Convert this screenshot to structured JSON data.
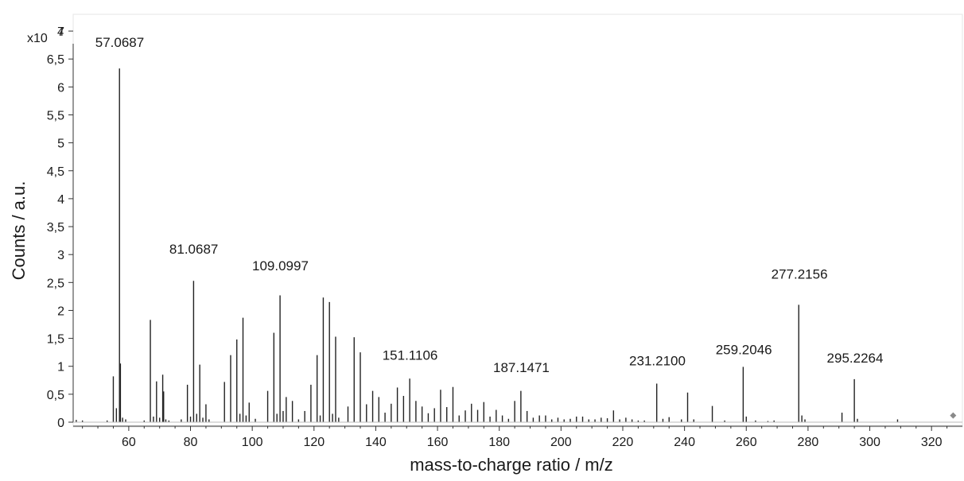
{
  "chart_data": {
    "type": "bar",
    "title": "",
    "xlabel": "mass-to-charge ratio / m/z",
    "ylabel": "Counts / a.u.",
    "y_multiplier_label": "x10",
    "y_multiplier_exponent": "4",
    "xlim": [
      42,
      330
    ],
    "ylim": [
      0,
      7.3
    ],
    "grid": false,
    "legend": "none",
    "colors": {
      "stick": "#222222",
      "axis": "#333333",
      "marker": "#8a8a8a"
    },
    "x_ticks": [
      60,
      80,
      100,
      120,
      140,
      160,
      180,
      200,
      220,
      240,
      260,
      280,
      300,
      320
    ],
    "x_tick_labels": [
      "60",
      "80",
      "100",
      "120",
      "140",
      "160",
      "180",
      "200",
      "220",
      "240",
      "260",
      "280",
      "300",
      "320"
    ],
    "y_ticks": [
      0,
      0.5,
      1,
      1.5,
      2,
      2.5,
      3,
      3.5,
      4,
      4.5,
      5,
      5.5,
      6,
      6.5,
      7
    ],
    "y_tick_labels": [
      "0",
      "0,5",
      "1",
      "1,5",
      "2",
      "2,5",
      "3",
      "3,5",
      "4",
      "4,5",
      "5",
      "5,5",
      "6",
      "6,5",
      "7"
    ],
    "series": [
      {
        "peaks": [
          [
            43,
            0.04
          ],
          [
            45,
            0.03
          ],
          [
            53,
            0.03
          ],
          [
            55,
            0.82
          ],
          [
            56,
            0.25
          ],
          [
            57,
            6.33
          ],
          [
            57.3,
            1.05
          ],
          [
            58,
            0.08
          ],
          [
            59,
            0.05
          ],
          [
            65,
            0.03
          ],
          [
            67,
            1.83
          ],
          [
            68,
            0.1
          ],
          [
            69,
            0.73
          ],
          [
            70,
            0.08
          ],
          [
            71,
            0.85
          ],
          [
            71.3,
            0.55
          ],
          [
            72,
            0.05
          ],
          [
            73,
            0.03
          ],
          [
            77,
            0.05
          ],
          [
            79,
            0.67
          ],
          [
            80,
            0.1
          ],
          [
            81,
            2.53
          ],
          [
            82,
            0.15
          ],
          [
            83,
            1.03
          ],
          [
            84,
            0.08
          ],
          [
            85,
            0.32
          ],
          [
            86,
            0.05
          ],
          [
            91,
            0.72
          ],
          [
            93,
            1.2
          ],
          [
            95,
            1.48
          ],
          [
            96,
            0.15
          ],
          [
            97,
            1.87
          ],
          [
            98,
            0.12
          ],
          [
            99,
            0.35
          ],
          [
            101,
            0.06
          ],
          [
            105,
            0.56
          ],
          [
            107,
            1.6
          ],
          [
            108,
            0.15
          ],
          [
            109,
            2.27
          ],
          [
            110,
            0.2
          ],
          [
            111,
            0.45
          ],
          [
            113,
            0.38
          ],
          [
            115,
            0.05
          ],
          [
            117,
            0.2
          ],
          [
            119,
            0.67
          ],
          [
            121,
            1.2
          ],
          [
            122,
            0.12
          ],
          [
            123,
            2.23
          ],
          [
            125,
            2.15
          ],
          [
            126,
            0.15
          ],
          [
            127,
            1.53
          ],
          [
            128,
            0.08
          ],
          [
            131,
            0.28
          ],
          [
            133,
            1.52
          ],
          [
            135,
            1.25
          ],
          [
            137,
            0.32
          ],
          [
            139,
            0.56
          ],
          [
            141,
            0.45
          ],
          [
            143,
            0.17
          ],
          [
            145,
            0.33
          ],
          [
            147,
            0.62
          ],
          [
            149,
            0.47
          ],
          [
            151,
            0.78
          ],
          [
            153,
            0.38
          ],
          [
            155,
            0.28
          ],
          [
            157,
            0.16
          ],
          [
            159,
            0.25
          ],
          [
            161,
            0.58
          ],
          [
            163,
            0.27
          ],
          [
            165,
            0.63
          ],
          [
            167,
            0.12
          ],
          [
            169,
            0.21
          ],
          [
            171,
            0.33
          ],
          [
            173,
            0.22
          ],
          [
            175,
            0.36
          ],
          [
            177,
            0.1
          ],
          [
            179,
            0.22
          ],
          [
            181,
            0.12
          ],
          [
            183,
            0.06
          ],
          [
            185,
            0.38
          ],
          [
            187,
            0.56
          ],
          [
            189,
            0.2
          ],
          [
            191,
            0.08
          ],
          [
            193,
            0.12
          ],
          [
            195,
            0.12
          ],
          [
            197,
            0.05
          ],
          [
            199,
            0.08
          ],
          [
            201,
            0.05
          ],
          [
            203,
            0.06
          ],
          [
            205,
            0.1
          ],
          [
            207,
            0.1
          ],
          [
            209,
            0.05
          ],
          [
            211,
            0.05
          ],
          [
            213,
            0.08
          ],
          [
            215,
            0.07
          ],
          [
            217,
            0.21
          ],
          [
            219,
            0.05
          ],
          [
            221,
            0.08
          ],
          [
            223,
            0.05
          ],
          [
            225,
            0.03
          ],
          [
            227,
            0.03
          ],
          [
            231,
            0.69
          ],
          [
            233,
            0.06
          ],
          [
            235,
            0.09
          ],
          [
            239,
            0.05
          ],
          [
            241,
            0.53
          ],
          [
            243,
            0.05
          ],
          [
            249,
            0.29
          ],
          [
            253,
            0.03
          ],
          [
            259,
            0.99
          ],
          [
            260,
            0.1
          ],
          [
            263,
            0.03
          ],
          [
            267,
            0.02
          ],
          [
            269,
            0.03
          ],
          [
            277,
            2.1
          ],
          [
            278,
            0.12
          ],
          [
            279,
            0.05
          ],
          [
            291,
            0.17
          ],
          [
            295,
            0.77
          ],
          [
            296,
            0.06
          ],
          [
            309,
            0.05
          ]
        ]
      }
    ],
    "annotations": [
      {
        "text": "57.0687",
        "x": 57.0687,
        "y": 6.72
      },
      {
        "text": "81.0687",
        "x": 81.0687,
        "y": 3.02
      },
      {
        "text": "109.0997",
        "x": 109.0997,
        "y": 2.72
      },
      {
        "text": "151.1106",
        "x": 151.1106,
        "y": 1.12
      },
      {
        "text": "187.1471",
        "x": 187.1471,
        "y": 0.9
      },
      {
        "text": "231.2100",
        "x": 231.21,
        "y": 1.02
      },
      {
        "text": "259.2046",
        "x": 259.2046,
        "y": 1.22
      },
      {
        "text": "277.2156",
        "x": 277.2156,
        "y": 2.57
      },
      {
        "text": "295.2264",
        "x": 295.2264,
        "y": 1.07
      }
    ],
    "marker_point": [
      327,
      0.12
    ]
  }
}
